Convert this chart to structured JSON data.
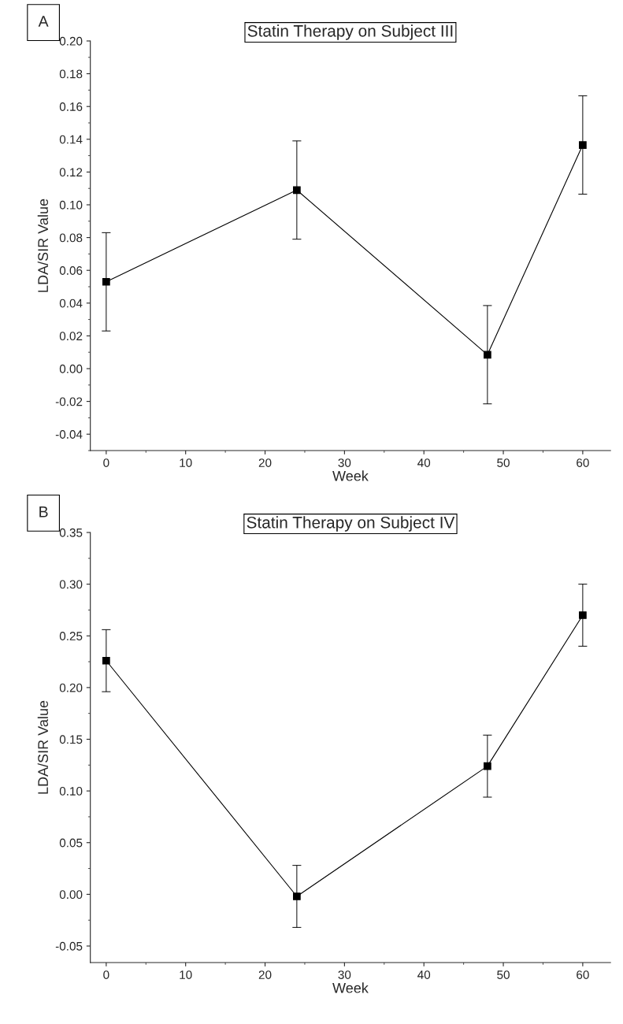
{
  "chart_data": [
    {
      "type": "line",
      "title": "Statin Therapy on Subject III",
      "xlabel": "Week",
      "ylabel": "LDA/SIR Value",
      "annotations": [
        "A"
      ],
      "x": [
        0,
        24,
        48,
        60
      ],
      "series": [
        {
          "color": "#000000",
          "values": [
            0.053,
            0.109,
            0.0085,
            0.1365
          ],
          "errors": [
            0.03,
            0.03,
            0.03,
            0.03
          ]
        }
      ],
      "marker": "square",
      "line_style": "solid",
      "grid": false,
      "legend": false,
      "xlim": [
        -2,
        63.5
      ],
      "xticks": [
        0,
        10,
        20,
        30,
        40,
        50,
        60
      ],
      "ylim": [
        -0.05,
        0.2
      ],
      "yticks": [
        {
          "value": -0.04,
          "label": "-0.04"
        },
        {
          "value": -0.02,
          "label": "-0.02"
        },
        {
          "value": 0,
          "label": "0.00"
        },
        {
          "value": 0.02,
          "label": "0.02"
        },
        {
          "value": 0.04,
          "label": "0.04"
        },
        {
          "value": 0.06,
          "label": "0.06"
        },
        {
          "value": 0.08,
          "label": "0.08"
        },
        {
          "value": 0.1,
          "label": "0.10"
        },
        {
          "value": 0.12,
          "label": "0.12"
        },
        {
          "value": 0.14,
          "label": "0.14"
        },
        {
          "value": 0.16,
          "label": "0.16"
        },
        {
          "value": 0.18,
          "label": "0.18"
        },
        {
          "value": 0.2,
          "label": "0.20"
        }
      ]
    },
    {
      "type": "line",
      "title": "Statin Therapy on Subject IV",
      "xlabel": "Week",
      "ylabel": "LDA/SIR Value",
      "annotations": [
        "B"
      ],
      "x": [
        0,
        24,
        48,
        60
      ],
      "series": [
        {
          "color": "#000000",
          "values": [
            0.226,
            -0.002,
            0.124,
            0.27
          ],
          "errors": [
            0.03,
            0.03,
            0.03,
            0.03
          ]
        }
      ],
      "marker": "square",
      "line_style": "solid",
      "grid": false,
      "legend": false,
      "xlim": [
        -2,
        63.5
      ],
      "xticks": [
        0,
        10,
        20,
        30,
        40,
        50,
        60
      ],
      "ylim": [
        -0.066,
        0.35
      ],
      "yticks": [
        {
          "value": -0.05,
          "label": "-0.05"
        },
        {
          "value": 0,
          "label": "0.00"
        },
        {
          "value": 0.05,
          "label": "0.05"
        },
        {
          "value": 0.1,
          "label": "0.10"
        },
        {
          "value": 0.15,
          "label": "0.15"
        },
        {
          "value": 0.2,
          "label": "0.20"
        },
        {
          "value": 0.25,
          "label": "0.25"
        },
        {
          "value": 0.3,
          "label": "0.30"
        },
        {
          "value": 0.35,
          "label": "0.35"
        }
      ]
    }
  ]
}
